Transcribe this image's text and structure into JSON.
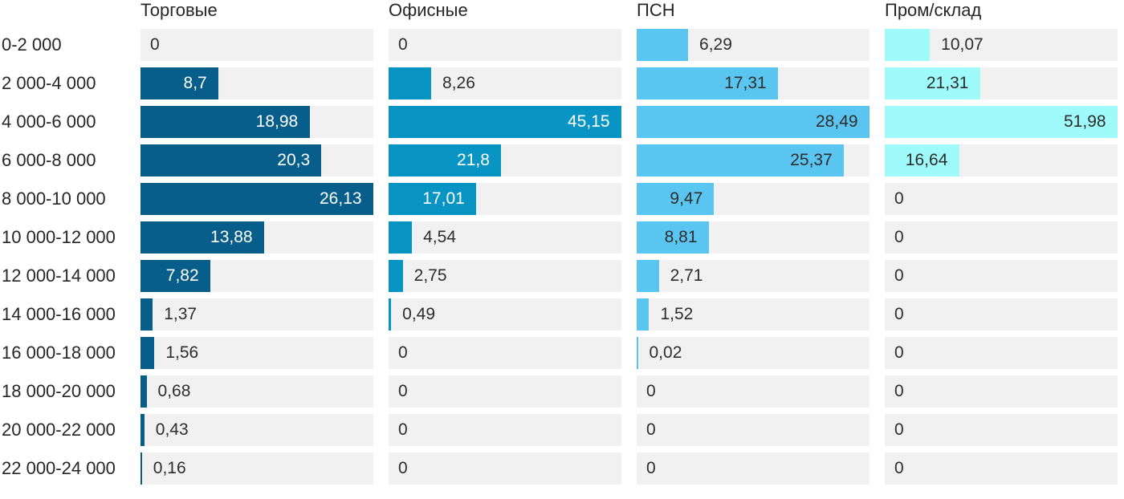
{
  "chart_data": {
    "type": "bar",
    "orientation": "horizontal",
    "title": "",
    "categories": [
      "0-2 000",
      "2 000-4 000",
      "4 000-6 000",
      "6 000-8 000",
      "8 000-10 000",
      "10 000-12 000",
      "12 000-14 000",
      "14 000-16 000",
      "16 000-18 000",
      "18 000-20 000",
      "20 000-22 000",
      "22 000-24 000"
    ],
    "series": [
      {
        "name": "Торговые",
        "color": "#075e8a",
        "label_inside_color": "#ffffff",
        "values": [
          0,
          8.7,
          18.98,
          20.3,
          26.13,
          13.88,
          7.82,
          1.37,
          1.56,
          0.68,
          0.43,
          0.16
        ]
      },
      {
        "name": "Офисные",
        "color": "#0995c4",
        "label_inside_color": "#ffffff",
        "values": [
          0,
          8.26,
          45.15,
          21.8,
          17.01,
          4.54,
          2.75,
          0.49,
          0,
          0,
          0,
          0
        ]
      },
      {
        "name": "ПСН",
        "color": "#5ac5f1",
        "label_inside_color": "#2d2d2d",
        "values": [
          6.29,
          17.31,
          28.49,
          25.37,
          9.47,
          8.81,
          2.71,
          1.52,
          0.02,
          0,
          0,
          0
        ]
      },
      {
        "name": "Пром/склад",
        "color": "#9efbf9",
        "label_inside_color": "#2d2d2d",
        "values": [
          10.07,
          21.31,
          51.98,
          16.64,
          0,
          0,
          0,
          0,
          0,
          0,
          0,
          0
        ]
      }
    ],
    "scaling": "each column scaled independently to its own max value",
    "track_color": "#f1f1f1",
    "value_label_outside_color": "#2d2d2d",
    "decimal_separator": ",",
    "legend_position": "column headers on top",
    "grid": false
  }
}
